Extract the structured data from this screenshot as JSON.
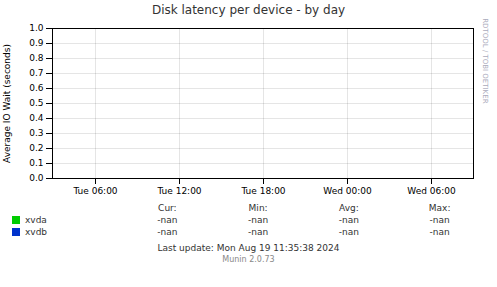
{
  "chart_data": {
    "type": "line",
    "title": "Disk latency per device - by day",
    "ylabel": "Average IO Wait (seconds)",
    "categories": [
      "Tue 06:00",
      "Tue 12:00",
      "Tue 18:00",
      "Wed 00:00",
      "Wed 06:00"
    ],
    "series": [
      {
        "name": "xvda",
        "color": "#00cc00",
        "values": [
          null,
          null,
          null,
          null,
          null
        ],
        "stats": [
          "-nan",
          "-nan",
          "-nan",
          "-nan"
        ]
      },
      {
        "name": "xvdb",
        "color": "#0033cc",
        "values": [
          null,
          null,
          null,
          null,
          null
        ],
        "stats": [
          "-nan",
          "-nan",
          "-nan",
          "-nan"
        ]
      }
    ],
    "stats_labels": [
      "Cur:",
      "Min:",
      "Avg:",
      "Max:"
    ],
    "ylim": [
      0.0,
      1.0
    ],
    "yticks": [
      {
        "value": 0.0,
        "label": "0.0"
      },
      0.1,
      0.2,
      0.3,
      0.4,
      0.5,
      0.6,
      0.7,
      0.8,
      0.9,
      {
        "value": 1.0,
        "label": "1.0"
      }
    ],
    "grid": true,
    "annotations": [
      "RRDTOOL / TOBI OETIKER",
      "Last update: Mon Aug 19 11:35:38 2024",
      "Munin 2.0.73"
    ]
  }
}
